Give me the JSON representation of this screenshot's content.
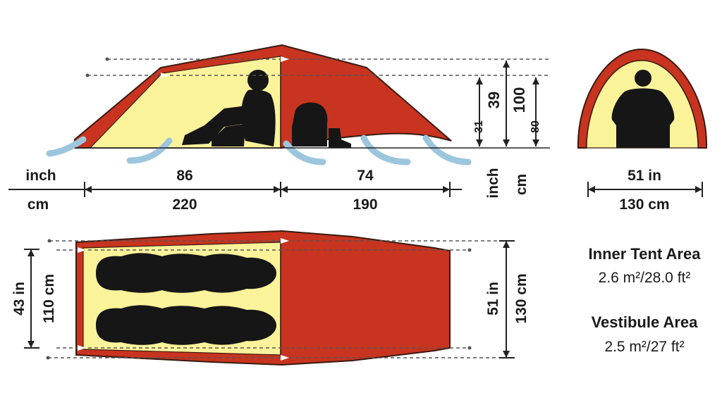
{
  "side_view": {
    "unit_inch": "inch",
    "unit_cm": "cm",
    "inner_length_in": "86",
    "inner_length_cm": "220",
    "vestibule_length_in": "74",
    "vestibule_length_cm": "190"
  },
  "height_labels": {
    "vestibule_height_in": "31",
    "inner_height_in": "39",
    "total_height_cm": "100",
    "inner_height_cm": "80",
    "unit_inch": "inch",
    "unit_cm": "cm"
  },
  "end_view": {
    "width_in": "51 in",
    "width_cm": "130 cm"
  },
  "floor_plan": {
    "inner_width_in": "43 in",
    "inner_width_cm": "110 cm",
    "outer_width_in": "51 in",
    "outer_width_cm": "130 cm"
  },
  "areas": {
    "inner_title": "Inner Tent Area",
    "inner_value": "2.6 m²/28.0 ft²",
    "vestibule_title": "Vestibule Area",
    "vestibule_value": "2.5 m²/27 ft²"
  },
  "colors": {
    "outer_fabric": "#c8341f",
    "inner_fabric": "#fbf39a",
    "airflow": "#9cc6dd"
  }
}
